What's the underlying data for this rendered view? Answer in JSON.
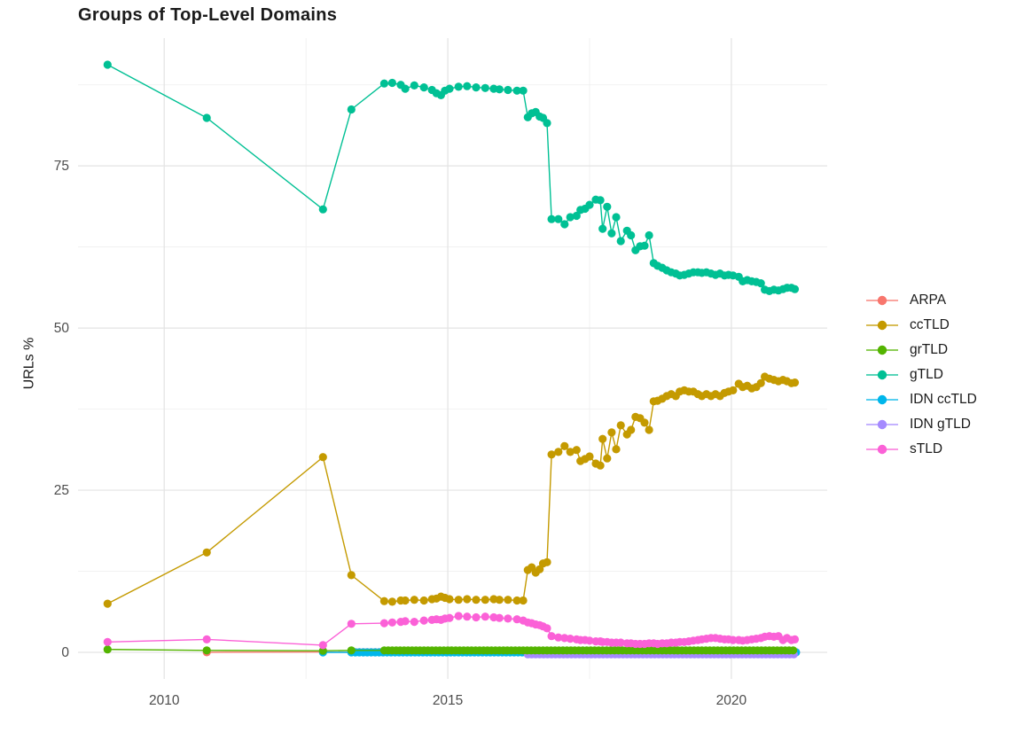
{
  "page": {
    "background": "#ffffff"
  },
  "chart_data": {
    "type": "line",
    "title": "Groups of Top-Level Domains",
    "ylabel": "URLs %",
    "xlabel": "",
    "legend_position": "right",
    "grid": {
      "major_color": "#e3e3e3",
      "minor_color": "#f0f0f0"
    },
    "axis_text_color": "#4d4d4d",
    "xlim": [
      2008.48,
      2021.69
    ],
    "ylim": [
      -4.1,
      94.7
    ],
    "x_major_ticks": [
      {
        "value": 2010,
        "label": "2010"
      },
      {
        "value": 2015,
        "label": "2015"
      },
      {
        "value": 2020,
        "label": "2020"
      }
    ],
    "x_minor_ticks": [
      2012.5,
      2017.5
    ],
    "y_major_ticks": [
      {
        "value": 0,
        "label": "0"
      },
      {
        "value": 25,
        "label": "25"
      },
      {
        "value": 50,
        "label": "50"
      },
      {
        "value": 75,
        "label": "75"
      }
    ],
    "y_minor_ticks": [
      12.5,
      37.5,
      62.5,
      87.5
    ],
    "series": [
      {
        "name": "ARPA",
        "color": "#F8766D",
        "z": 0,
        "points": [
          [
            2010.75,
            0.02
          ],
          [
            2012.8,
            0.05
          ]
        ],
        "spans": [
          {
            "from": 2013.3,
            "to": 2021.12,
            "step": 0.07,
            "value": 0.02
          }
        ]
      },
      {
        "name": "ccTLD",
        "color": "#C49A00",
        "z": 4,
        "points": [
          [
            2009.0,
            7.5
          ],
          [
            2010.75,
            15.4
          ],
          [
            2012.8,
            30.1
          ],
          [
            2013.3,
            11.9
          ],
          [
            2013.88,
            7.9
          ],
          [
            2014.02,
            7.8
          ],
          [
            2014.17,
            8.0
          ],
          [
            2014.25,
            8.0
          ],
          [
            2014.41,
            8.1
          ],
          [
            2014.58,
            8.0
          ],
          [
            2014.72,
            8.2
          ],
          [
            2014.8,
            8.3
          ],
          [
            2014.88,
            8.6
          ],
          [
            2014.95,
            8.4
          ],
          [
            2015.03,
            8.2
          ],
          [
            2015.19,
            8.1
          ],
          [
            2015.34,
            8.2
          ],
          [
            2015.5,
            8.1
          ],
          [
            2015.66,
            8.1
          ],
          [
            2015.81,
            8.2
          ],
          [
            2015.91,
            8.1
          ],
          [
            2016.06,
            8.1
          ],
          [
            2016.22,
            8.0
          ],
          [
            2016.33,
            8.0
          ],
          [
            2016.41,
            12.7
          ],
          [
            2016.48,
            13.1
          ],
          [
            2016.55,
            12.3
          ],
          [
            2016.62,
            12.8
          ],
          [
            2016.68,
            13.7
          ],
          [
            2016.75,
            13.9
          ],
          [
            2016.83,
            30.5
          ],
          [
            2016.95,
            30.9
          ],
          [
            2017.06,
            31.8
          ],
          [
            2017.16,
            30.9
          ],
          [
            2017.27,
            31.2
          ],
          [
            2017.34,
            29.5
          ],
          [
            2017.42,
            29.8
          ],
          [
            2017.5,
            30.2
          ],
          [
            2017.61,
            29.1
          ],
          [
            2017.69,
            28.8
          ],
          [
            2017.73,
            32.9
          ],
          [
            2017.81,
            29.9
          ],
          [
            2017.89,
            33.9
          ],
          [
            2017.97,
            31.3
          ],
          [
            2018.05,
            35.0
          ],
          [
            2018.16,
            33.6
          ],
          [
            2018.23,
            34.3
          ],
          [
            2018.31,
            36.3
          ],
          [
            2018.39,
            36.1
          ],
          [
            2018.47,
            35.4
          ],
          [
            2018.55,
            34.3
          ],
          [
            2018.63,
            38.7
          ],
          [
            2018.7,
            38.8
          ],
          [
            2018.78,
            39.1
          ],
          [
            2018.86,
            39.5
          ],
          [
            2018.94,
            39.8
          ],
          [
            2019.02,
            39.5
          ],
          [
            2019.09,
            40.2
          ],
          [
            2019.17,
            40.4
          ],
          [
            2019.25,
            40.2
          ],
          [
            2019.33,
            40.2
          ],
          [
            2019.41,
            39.8
          ],
          [
            2019.48,
            39.5
          ],
          [
            2019.56,
            39.8
          ],
          [
            2019.64,
            39.5
          ],
          [
            2019.72,
            39.8
          ],
          [
            2019.8,
            39.5
          ],
          [
            2019.88,
            40.0
          ],
          [
            2019.95,
            40.2
          ],
          [
            2020.03,
            40.4
          ],
          [
            2020.13,
            41.4
          ],
          [
            2020.2,
            40.9
          ],
          [
            2020.28,
            41.1
          ],
          [
            2020.36,
            40.7
          ],
          [
            2020.44,
            40.9
          ],
          [
            2020.52,
            41.5
          ],
          [
            2020.59,
            42.5
          ],
          [
            2020.67,
            42.2
          ],
          [
            2020.75,
            42.0
          ],
          [
            2020.83,
            41.8
          ],
          [
            2020.91,
            42.0
          ],
          [
            2020.98,
            41.8
          ],
          [
            2021.06,
            41.5
          ],
          [
            2021.12,
            41.6
          ]
        ]
      },
      {
        "name": "grTLD",
        "color": "#53B400",
        "z": 3,
        "points": [
          [
            2009.0,
            0.45
          ],
          [
            2010.75,
            0.3
          ],
          [
            2012.8,
            0.25
          ],
          [
            2013.3,
            0.3
          ]
        ],
        "spans": [
          {
            "from": 2013.88,
            "to": 2021.12,
            "step": 0.07,
            "value": 0.3
          }
        ]
      },
      {
        "name": "gTLD",
        "color": "#00C094",
        "z": 5,
        "points": [
          [
            2009.0,
            90.6
          ],
          [
            2010.75,
            82.4
          ],
          [
            2012.8,
            68.3
          ],
          [
            2013.3,
            83.7
          ],
          [
            2013.88,
            87.7
          ],
          [
            2014.02,
            87.8
          ],
          [
            2014.17,
            87.5
          ],
          [
            2014.25,
            86.9
          ],
          [
            2014.41,
            87.4
          ],
          [
            2014.58,
            87.1
          ],
          [
            2014.72,
            86.7
          ],
          [
            2014.8,
            86.2
          ],
          [
            2014.88,
            85.9
          ],
          [
            2014.95,
            86.6
          ],
          [
            2015.03,
            86.9
          ],
          [
            2015.19,
            87.2
          ],
          [
            2015.34,
            87.3
          ],
          [
            2015.5,
            87.1
          ],
          [
            2015.66,
            87.0
          ],
          [
            2015.81,
            86.9
          ],
          [
            2015.91,
            86.8
          ],
          [
            2016.06,
            86.7
          ],
          [
            2016.22,
            86.6
          ],
          [
            2016.33,
            86.6
          ],
          [
            2016.41,
            82.5
          ],
          [
            2016.48,
            83.1
          ],
          [
            2016.55,
            83.3
          ],
          [
            2016.62,
            82.6
          ],
          [
            2016.68,
            82.4
          ],
          [
            2016.75,
            81.6
          ],
          [
            2016.83,
            66.8
          ],
          [
            2016.95,
            66.8
          ],
          [
            2017.06,
            66.0
          ],
          [
            2017.16,
            67.1
          ],
          [
            2017.27,
            67.3
          ],
          [
            2017.34,
            68.2
          ],
          [
            2017.42,
            68.4
          ],
          [
            2017.5,
            69.0
          ],
          [
            2017.61,
            69.8
          ],
          [
            2017.69,
            69.7
          ],
          [
            2017.73,
            65.3
          ],
          [
            2017.81,
            68.7
          ],
          [
            2017.89,
            64.6
          ],
          [
            2017.97,
            67.1
          ],
          [
            2018.05,
            63.4
          ],
          [
            2018.16,
            65.0
          ],
          [
            2018.23,
            64.3
          ],
          [
            2018.31,
            62.0
          ],
          [
            2018.39,
            62.6
          ],
          [
            2018.47,
            62.7
          ],
          [
            2018.55,
            64.3
          ],
          [
            2018.63,
            60.0
          ],
          [
            2018.7,
            59.6
          ],
          [
            2018.78,
            59.3
          ],
          [
            2018.86,
            58.9
          ],
          [
            2018.94,
            58.6
          ],
          [
            2019.02,
            58.4
          ],
          [
            2019.09,
            58.1
          ],
          [
            2019.17,
            58.2
          ],
          [
            2019.25,
            58.4
          ],
          [
            2019.33,
            58.6
          ],
          [
            2019.41,
            58.6
          ],
          [
            2019.48,
            58.5
          ],
          [
            2019.56,
            58.6
          ],
          [
            2019.64,
            58.4
          ],
          [
            2019.72,
            58.2
          ],
          [
            2019.8,
            58.4
          ],
          [
            2019.88,
            58.1
          ],
          [
            2019.95,
            58.2
          ],
          [
            2020.03,
            58.1
          ],
          [
            2020.13,
            57.9
          ],
          [
            2020.2,
            57.2
          ],
          [
            2020.28,
            57.4
          ],
          [
            2020.36,
            57.2
          ],
          [
            2020.44,
            57.1
          ],
          [
            2020.52,
            56.9
          ],
          [
            2020.59,
            55.9
          ],
          [
            2020.67,
            55.7
          ],
          [
            2020.75,
            55.9
          ],
          [
            2020.83,
            55.8
          ],
          [
            2020.91,
            56.0
          ],
          [
            2020.98,
            56.2
          ],
          [
            2021.06,
            56.2
          ],
          [
            2021.12,
            56.0
          ]
        ]
      },
      {
        "name": "IDN ccTLD",
        "color": "#00B6EB",
        "z": 1,
        "points": [
          [
            2012.8,
            0.0
          ]
        ],
        "spans": [
          {
            "from": 2013.3,
            "to": 2021.12,
            "step": 0.07,
            "value": 0.0
          }
        ]
      },
      {
        "name": "IDN gTLD",
        "color": "#A58AFF",
        "z": 2,
        "points": [],
        "spans": [
          {
            "from": 2016.41,
            "to": 2021.12,
            "step": 0.07,
            "value": -0.3
          }
        ]
      },
      {
        "name": "sTLD",
        "color": "#FB61D7",
        "z": 6,
        "points": [
          [
            2009.0,
            1.6
          ],
          [
            2010.75,
            2.0
          ],
          [
            2012.8,
            1.1
          ],
          [
            2013.3,
            4.4
          ],
          [
            2013.88,
            4.5
          ],
          [
            2014.02,
            4.6
          ],
          [
            2014.17,
            4.7
          ],
          [
            2014.25,
            4.8
          ],
          [
            2014.41,
            4.7
          ],
          [
            2014.58,
            4.9
          ],
          [
            2014.72,
            5.0
          ],
          [
            2014.8,
            5.1
          ],
          [
            2014.88,
            5.0
          ],
          [
            2014.95,
            5.2
          ],
          [
            2015.03,
            5.3
          ],
          [
            2015.19,
            5.6
          ],
          [
            2015.34,
            5.5
          ],
          [
            2015.5,
            5.4
          ],
          [
            2015.66,
            5.5
          ],
          [
            2015.81,
            5.4
          ],
          [
            2015.91,
            5.3
          ],
          [
            2016.06,
            5.2
          ],
          [
            2016.22,
            5.1
          ],
          [
            2016.33,
            4.9
          ],
          [
            2016.41,
            4.6
          ],
          [
            2016.48,
            4.5
          ],
          [
            2016.55,
            4.3
          ],
          [
            2016.62,
            4.2
          ],
          [
            2016.68,
            4.0
          ],
          [
            2016.75,
            3.7
          ],
          [
            2016.83,
            2.5
          ],
          [
            2016.95,
            2.3
          ],
          [
            2017.06,
            2.2
          ],
          [
            2017.16,
            2.1
          ],
          [
            2017.27,
            2.0
          ],
          [
            2017.34,
            1.9
          ],
          [
            2017.42,
            1.9
          ],
          [
            2017.5,
            1.8
          ],
          [
            2017.61,
            1.7
          ],
          [
            2017.69,
            1.7
          ],
          [
            2017.73,
            1.6
          ],
          [
            2017.81,
            1.6
          ],
          [
            2017.89,
            1.5
          ],
          [
            2017.97,
            1.5
          ],
          [
            2018.05,
            1.5
          ],
          [
            2018.16,
            1.4
          ],
          [
            2018.23,
            1.4
          ],
          [
            2018.31,
            1.3
          ],
          [
            2018.39,
            1.3
          ],
          [
            2018.47,
            1.3
          ],
          [
            2018.55,
            1.4
          ],
          [
            2018.63,
            1.4
          ],
          [
            2018.7,
            1.3
          ],
          [
            2018.78,
            1.4
          ],
          [
            2018.86,
            1.4
          ],
          [
            2018.94,
            1.5
          ],
          [
            2019.02,
            1.5
          ],
          [
            2019.09,
            1.6
          ],
          [
            2019.17,
            1.6
          ],
          [
            2019.25,
            1.7
          ],
          [
            2019.33,
            1.8
          ],
          [
            2019.41,
            1.9
          ],
          [
            2019.48,
            2.0
          ],
          [
            2019.56,
            2.1
          ],
          [
            2019.64,
            2.2
          ],
          [
            2019.72,
            2.2
          ],
          [
            2019.8,
            2.1
          ],
          [
            2019.88,
            2.0
          ],
          [
            2019.95,
            2.0
          ],
          [
            2020.03,
            1.9
          ],
          [
            2020.13,
            1.9
          ],
          [
            2020.2,
            1.8
          ],
          [
            2020.28,
            1.9
          ],
          [
            2020.36,
            2.0
          ],
          [
            2020.44,
            2.1
          ],
          [
            2020.52,
            2.2
          ],
          [
            2020.59,
            2.4
          ],
          [
            2020.67,
            2.5
          ],
          [
            2020.75,
            2.4
          ],
          [
            2020.83,
            2.5
          ],
          [
            2020.91,
            1.9
          ],
          [
            2020.98,
            2.2
          ],
          [
            2021.06,
            1.9
          ],
          [
            2021.12,
            2.0
          ]
        ]
      }
    ]
  }
}
